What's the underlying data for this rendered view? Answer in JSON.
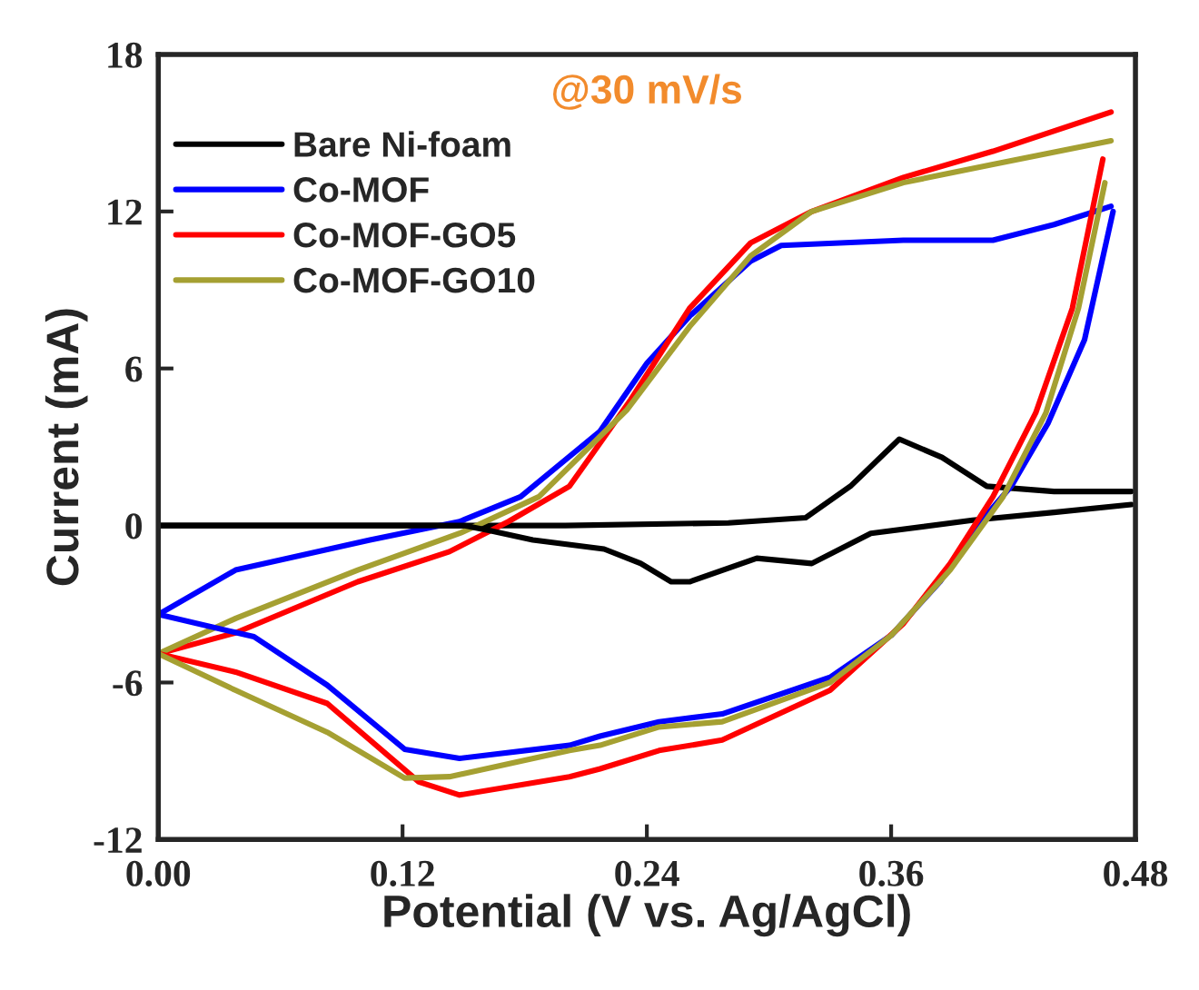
{
  "chart_data": {
    "type": "line",
    "xlabel": "Potential (V vs. Ag/AgCl)",
    "ylabel": "Current (mA)",
    "annotations": [
      "@30 mV/s"
    ],
    "xlim": [
      0,
      0.48
    ],
    "ylim": [
      -12,
      18
    ],
    "xticks": [
      {
        "value": 0,
        "label": "0.00"
      },
      {
        "value": 0.12,
        "label": "0.12"
      },
      {
        "value": 0.24,
        "label": "0.24"
      },
      {
        "value": 0.36,
        "label": "0.36"
      },
      {
        "value": 0.48,
        "label": "0.48"
      }
    ],
    "yticks": [
      -12,
      -6,
      0,
      6,
      12,
      18
    ],
    "legend": "top left",
    "grid": false,
    "marker": "none",
    "line_style": "solid",
    "series": [
      {
        "name": "Bare Ni-foam",
        "color": "#000000",
        "x": [
          0,
          0.1,
          0.2,
          0.28,
          0.318,
          0.34,
          0.364,
          0.385,
          0.407,
          0.44,
          0.478
        ],
        "values": [
          0,
          0,
          0,
          0.1,
          0.3,
          1.5,
          3.3,
          2.6,
          1.5,
          1.3,
          1.3
        ]
      },
      {
        "name": "Co-MOF",
        "color": "#0000ff",
        "x": [
          0,
          0.038,
          0.104,
          0.148,
          0.178,
          0.217,
          0.24,
          0.261,
          0.291,
          0.306,
          0.366,
          0.41,
          0.44,
          0.468
        ],
        "values": [
          -3.4,
          -1.7,
          -0.55,
          0.15,
          1.1,
          3.6,
          6.2,
          8.0,
          10.1,
          10.7,
          10.9,
          10.9,
          11.5,
          12.2
        ]
      },
      {
        "name": "Co-MOF-GO5",
        "color": "#ff0000",
        "x": [
          0,
          0.038,
          0.098,
          0.143,
          0.172,
          0.202,
          0.232,
          0.261,
          0.291,
          0.321,
          0.366,
          0.41,
          0.468
        ],
        "values": [
          -4.9,
          -4.1,
          -2.15,
          -1.0,
          0.15,
          1.5,
          4.8,
          8.3,
          10.8,
          12.0,
          13.3,
          14.3,
          15.8
        ]
      },
      {
        "name": "Co-MOF-GO10",
        "color": "#a5a032",
        "x": [
          0,
          0.038,
          0.098,
          0.148,
          0.187,
          0.23,
          0.261,
          0.291,
          0.321,
          0.366,
          0.41,
          0.468
        ],
        "values": [
          -4.9,
          -3.55,
          -1.7,
          -0.3,
          1.1,
          4.4,
          7.6,
          10.3,
          12.0,
          13.1,
          13.8,
          14.7
        ]
      },
      {
        "color": "#000000",
        "x": [
          0,
          0.1,
          0.15,
          0.163,
          0.184,
          0.219,
          0.237,
          0.252,
          0.261,
          0.294,
          0.321,
          0.35,
          0.4,
          0.44,
          0.478
        ],
        "values": [
          0,
          0,
          0,
          -0.2,
          -0.55,
          -0.9,
          -1.45,
          -2.15,
          -2.15,
          -1.25,
          -1.45,
          -0.3,
          0.2,
          0.5,
          0.8
        ]
      },
      {
        "color": "#0000ff",
        "x": [
          0,
          0.047,
          0.083,
          0.121,
          0.148,
          0.202,
          0.217,
          0.246,
          0.277,
          0.33,
          0.36,
          0.384,
          0.404,
          0.419,
          0.437,
          0.455,
          0.469
        ],
        "values": [
          -3.4,
          -4.25,
          -6.1,
          -8.55,
          -8.9,
          -8.4,
          -8.05,
          -7.5,
          -7.2,
          -5.8,
          -4.2,
          -2.15,
          0.15,
          1.5,
          3.9,
          7.1,
          12.0
        ]
      },
      {
        "color": "#ff0000",
        "x": [
          0,
          0.038,
          0.083,
          0.128,
          0.148,
          0.202,
          0.217,
          0.246,
          0.277,
          0.33,
          0.366,
          0.389,
          0.41,
          0.431,
          0.449,
          0.464
        ],
        "values": [
          -4.9,
          -5.6,
          -6.8,
          -9.8,
          -10.3,
          -9.6,
          -9.3,
          -8.6,
          -8.2,
          -6.3,
          -3.75,
          -1.45,
          1.1,
          4.3,
          8.3,
          14.0
        ]
      },
      {
        "color": "#a5a032",
        "x": [
          0,
          0.038,
          0.083,
          0.121,
          0.143,
          0.202,
          0.217,
          0.246,
          0.277,
          0.33,
          0.36,
          0.389,
          0.415,
          0.436,
          0.452,
          0.465
        ],
        "values": [
          -4.9,
          -6.3,
          -7.9,
          -9.65,
          -9.6,
          -8.6,
          -8.4,
          -7.7,
          -7.5,
          -6.0,
          -4.2,
          -1.7,
          1.1,
          4.3,
          8.3,
          13.1
        ]
      }
    ]
  }
}
